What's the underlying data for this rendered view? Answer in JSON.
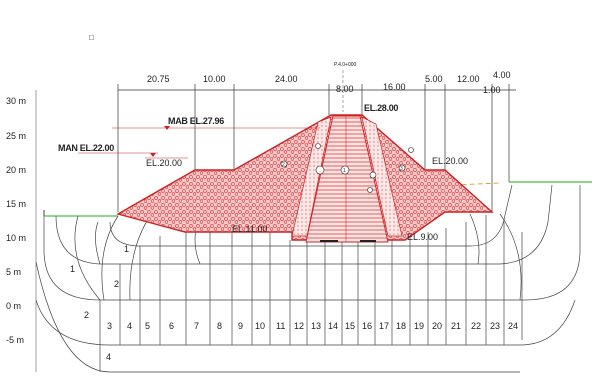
{
  "corner_marker": "□",
  "y_axis": {
    "ticks": [
      "30 m",
      "25 m",
      "20 m",
      "15 m",
      "10 m",
      "5 m",
      "0 m",
      "-5 m"
    ]
  },
  "top_dimensions": [
    "20.75",
    "10.00",
    "24.00",
    "8.00",
    "16.00",
    "5.00",
    "12.00",
    "4.00"
  ],
  "secondary_dimension": "1.00",
  "axis_label": "P.4.0+000",
  "elevations": {
    "mab": "MAB EL.27.96",
    "man": "MAN EL.22.00",
    "upstream_berm": "EL.20.00",
    "crest": "EL.28.00",
    "downstream_berm": "EL.20.00",
    "core_base": "EL.9.00",
    "upstream_base": "EL.11.00"
  },
  "zone_numbers": [
    "1",
    "2",
    "3",
    "4",
    "5",
    "6",
    "7",
    "8",
    "9",
    "10",
    "11",
    "12",
    "13",
    "14",
    "15",
    "16",
    "17",
    "18",
    "19",
    "20",
    "21",
    "22",
    "23",
    "24"
  ],
  "foundation_labels": [
    "1",
    "2",
    "2",
    "3",
    "4",
    "1",
    "2"
  ],
  "colors": {
    "embankment_fill": "#f4c6c6",
    "embankment_line": "#cc2222",
    "core_hatch": "#d84040",
    "mesh_line": "#444444",
    "ground_line": "#22aa22",
    "water_line": "#d8a020",
    "dimension_line": "#333333"
  }
}
